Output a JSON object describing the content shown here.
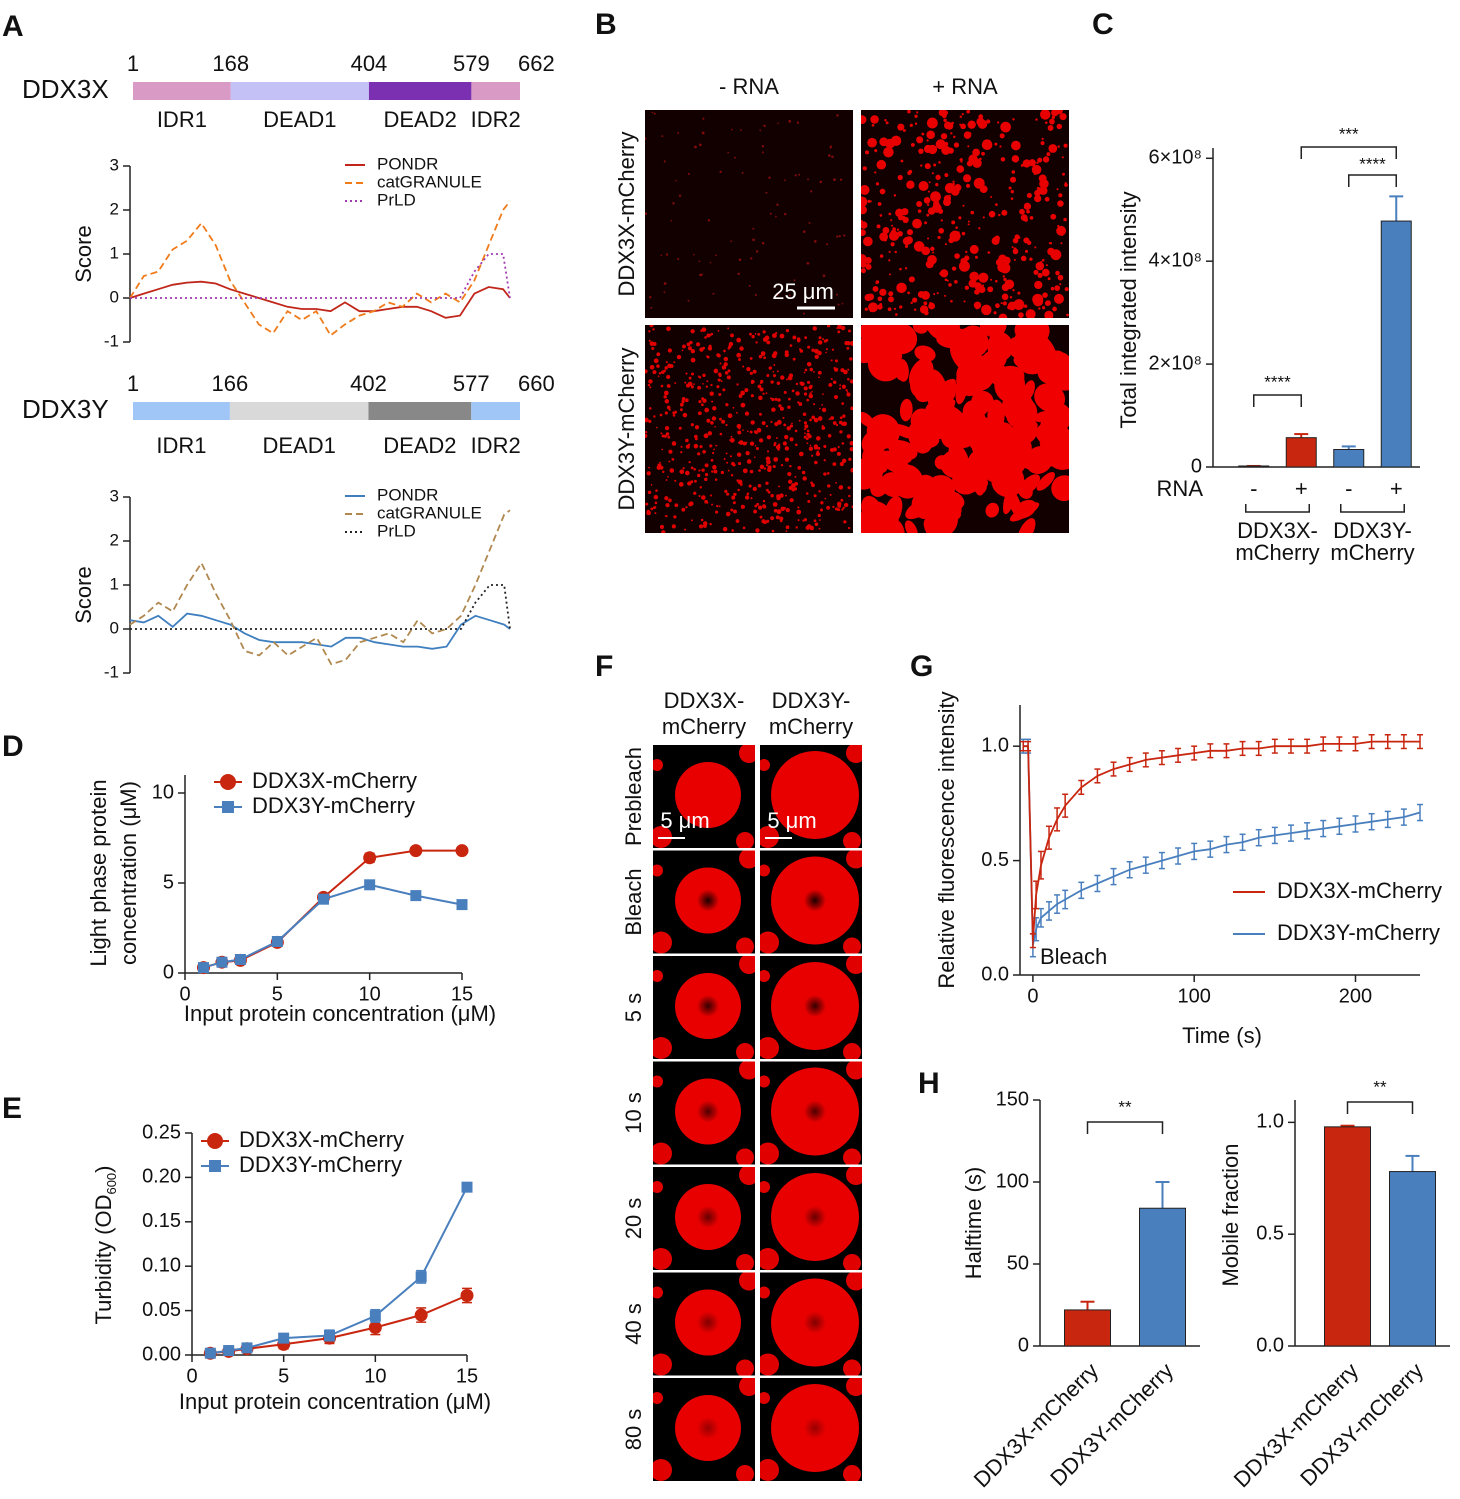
{
  "panel_labels": [
    "A",
    "B",
    "C",
    "D",
    "E",
    "F",
    "G",
    "H"
  ],
  "domain_maps": [
    {
      "name": "DDX3X",
      "positions": [
        1,
        168,
        404,
        579,
        662
      ],
      "domains": [
        "IDR1",
        "DEAD1",
        "DEAD2",
        "IDR2"
      ],
      "colors": [
        "#d99bc5",
        "#c3c1f6",
        "#7a30b0",
        "#d99bc5"
      ]
    },
    {
      "name": "DDX3Y",
      "positions": [
        1,
        166,
        402,
        577,
        660
      ],
      "domains": [
        "IDR1",
        "DEAD1",
        "DEAD2",
        "IDR2"
      ],
      "colors": [
        "#9fc6f6",
        "#d9d9d9",
        "#888888",
        "#9fc6f6"
      ]
    }
  ],
  "micrographs_b": {
    "columns": [
      "- RNA",
      "+ RNA"
    ],
    "rows": [
      "DDX3X-mCherry",
      "DDX3Y-mCherry"
    ],
    "scale_bar": "25 μm"
  },
  "micrographs_f": {
    "columns": [
      [
        "DDX3X-",
        "mCherry"
      ],
      [
        "DDX3Y-",
        "mCherry"
      ]
    ],
    "rows": [
      "Prebleach",
      "Bleach",
      "5 s",
      "10 s",
      "20 s",
      "40 s",
      "80 s"
    ],
    "scale_bar": "5 μm"
  },
  "chart_data": [
    {
      "type": "line",
      "ylabel": "Score",
      "xlim": [
        1,
        662
      ],
      "ylim": [
        -1,
        3
      ],
      "yticks": [
        -1,
        0,
        1,
        2,
        3
      ],
      "x": [
        1,
        25,
        50,
        75,
        100,
        125,
        150,
        175,
        200,
        225,
        250,
        275,
        300,
        325,
        350,
        375,
        400,
        425,
        450,
        475,
        500,
        525,
        550,
        575,
        600,
        625,
        650,
        662
      ],
      "series": [
        {
          "name": "PONDR",
          "color": "#c0261a",
          "dash": "solid",
          "values": [
            0,
            0.1,
            0.2,
            0.3,
            0.35,
            0.37,
            0.33,
            0.2,
            0.1,
            0.0,
            -0.1,
            -0.2,
            -0.25,
            -0.25,
            -0.3,
            -0.1,
            -0.3,
            -0.3,
            -0.25,
            -0.2,
            -0.2,
            -0.3,
            -0.45,
            -0.4,
            0.1,
            0.25,
            0.2,
            0
          ]
        },
        {
          "name": "catGRANULE",
          "color": "#f07b1a",
          "dash": "dashed",
          "values": [
            0,
            0.5,
            0.6,
            1.1,
            1.3,
            1.7,
            1.2,
            0.4,
            -0.1,
            -0.6,
            -0.8,
            -0.3,
            -0.5,
            -0.3,
            -0.85,
            -0.6,
            -0.4,
            -0.3,
            -0.1,
            -0.2,
            0.1,
            -0.1,
            0.1,
            -0.1,
            0.4,
            1.2,
            2.0,
            2.2
          ]
        },
        {
          "name": "PrLD",
          "color": "#a03ab0",
          "dash": "dotted",
          "values": [
            0,
            0,
            0,
            0,
            0,
            0,
            0,
            0,
            0,
            0,
            0,
            0,
            0,
            0,
            0,
            0,
            0,
            0,
            0,
            0,
            0,
            0,
            0,
            0,
            0.6,
            1.0,
            1.0,
            0
          ]
        }
      ]
    },
    {
      "type": "line",
      "ylabel": "Score",
      "xlim": [
        1,
        660
      ],
      "ylim": [
        -1,
        3
      ],
      "yticks": [
        -1,
        0,
        1,
        2,
        3
      ],
      "x": [
        1,
        25,
        50,
        75,
        100,
        125,
        150,
        175,
        200,
        225,
        250,
        275,
        300,
        325,
        350,
        375,
        400,
        425,
        450,
        475,
        500,
        525,
        550,
        575,
        600,
        625,
        650,
        660
      ],
      "series": [
        {
          "name": "PONDR",
          "color": "#3f7fbf",
          "dash": "solid",
          "values": [
            0.2,
            0.15,
            0.3,
            0.05,
            0.35,
            0.3,
            0.2,
            0.1,
            -0.1,
            -0.25,
            -0.3,
            -0.3,
            -0.3,
            -0.35,
            -0.4,
            -0.2,
            -0.2,
            -0.3,
            -0.35,
            -0.4,
            -0.4,
            -0.45,
            -0.4,
            0.1,
            0.3,
            0.2,
            0.1,
            0
          ]
        },
        {
          "name": "catGRANULE",
          "color": "#b08850",
          "dash": "dashed",
          "values": [
            0.1,
            0.3,
            0.6,
            0.4,
            1.0,
            1.5,
            0.8,
            0.2,
            -0.5,
            -0.6,
            -0.3,
            -0.6,
            -0.4,
            -0.2,
            -0.8,
            -0.7,
            -0.3,
            -0.2,
            -0.1,
            -0.3,
            0.2,
            -0.1,
            0.0,
            0.3,
            1.0,
            1.8,
            2.6,
            2.7
          ]
        },
        {
          "name": "PrLD",
          "color": "#222222",
          "dash": "dotted",
          "values": [
            0,
            0,
            0,
            0,
            0,
            0,
            0,
            0,
            0,
            0,
            0,
            0,
            0,
            0,
            0,
            0,
            0,
            0,
            0,
            0,
            0,
            0,
            0,
            0,
            0.6,
            1.0,
            1.0,
            0
          ]
        }
      ]
    },
    {
      "type": "bar",
      "ylabel": "Total integrated intensity",
      "ylim": [
        0,
        620000000
      ],
      "yticks": [
        0,
        {
          "value": 200000000,
          "label": "2×10⁸"
        },
        {
          "value": 400000000,
          "label": "4×10⁸"
        },
        {
          "value": 600000000,
          "label": "6×10⁸"
        }
      ],
      "row_label": "RNA",
      "categories": [
        "-",
        "+",
        "-",
        "+"
      ],
      "groups": [
        [
          "DDX3X-",
          "mCherry"
        ],
        [
          "DDX3Y-",
          "mCherry"
        ]
      ],
      "values": [
        2000000,
        57000000,
        34000000,
        478000000
      ],
      "errors": [
        0,
        7000000,
        6000000,
        48000000
      ],
      "colors": [
        "#c8260f",
        "#c8260f",
        "#4a7fbe",
        "#4a7fbe"
      ],
      "significance": [
        {
          "label": "****",
          "between": [
            0,
            1
          ]
        },
        {
          "label": "****",
          "between": [
            2,
            3
          ]
        },
        {
          "label": "***",
          "between": [
            1,
            3
          ]
        }
      ]
    },
    {
      "type": "line",
      "xlabel": "Input protein concentration (μM)",
      "ylabel": [
        "Light phase protein",
        "concentration (μM)"
      ],
      "xlim": [
        0,
        15
      ],
      "xticks": [
        0,
        5,
        10,
        15
      ],
      "ylim": [
        0,
        11
      ],
      "yticks": [
        0,
        5,
        10
      ],
      "x": [
        1,
        2,
        3,
        5,
        7.5,
        10,
        12.5,
        15
      ],
      "series": [
        {
          "name": "DDX3X-mCherry",
          "color": "#c8260f",
          "marker": "circle",
          "values": [
            0.3,
            0.6,
            0.7,
            1.7,
            4.2,
            6.4,
            6.8,
            6.8
          ],
          "errors": [
            0.15,
            0.1,
            0.1,
            0.1,
            0.1,
            0.25,
            0.1,
            0.1
          ]
        },
        {
          "name": "DDX3Y-mCherry",
          "color": "#4a7fbe",
          "marker": "square",
          "values": [
            0.3,
            0.6,
            0.75,
            1.75,
            4.1,
            4.9,
            4.3,
            3.8
          ],
          "errors": [
            0.1,
            0.1,
            0.1,
            0.1,
            0.1,
            0.1,
            0.1,
            0.1
          ]
        }
      ]
    },
    {
      "type": "line",
      "xlabel": "Input protein concentration (μM)",
      "ylabel": [
        "Turbidity (OD",
        "600",
        ")"
      ],
      "xlim": [
        0,
        15
      ],
      "xticks": [
        0,
        5,
        10,
        15
      ],
      "ylim": [
        0,
        0.25
      ],
      "yticks": [
        {
          "value": 0,
          "label": "0.00"
        },
        {
          "value": 0.05,
          "label": "0.05"
        },
        {
          "value": 0.1,
          "label": "0.10"
        },
        {
          "value": 0.15,
          "label": "0.15"
        },
        {
          "value": 0.2,
          "label": "0.20"
        },
        {
          "value": 0.25,
          "label": "0.25"
        }
      ],
      "x": [
        1,
        2,
        3,
        5,
        7.5,
        10,
        12.5,
        15
      ],
      "series": [
        {
          "name": "DDX3X-mCherry",
          "color": "#c8260f",
          "marker": "circle",
          "values": [
            0.002,
            0.004,
            0.007,
            0.012,
            0.019,
            0.031,
            0.045,
            0.067
          ],
          "errors": [
            0.003,
            0.003,
            0.003,
            0.005,
            0.006,
            0.008,
            0.008,
            0.008
          ]
        },
        {
          "name": "DDX3Y-mCherry",
          "color": "#4a7fbe",
          "marker": "square",
          "values": [
            0.002,
            0.005,
            0.008,
            0.019,
            0.022,
            0.044,
            0.088,
            0.189
          ],
          "errors": [
            0.002,
            0.003,
            0.003,
            0.004,
            0.006,
            0.007,
            0.007,
            0.005
          ]
        }
      ]
    },
    {
      "type": "line",
      "xlabel": "Time (s)",
      "ylabel": "Relative fluorescence intensity",
      "annotation": "Bleach",
      "xlim": [
        -8,
        240
      ],
      "xticks": [
        0,
        100,
        200
      ],
      "ylim": [
        0,
        1.18
      ],
      "yticks": [
        {
          "value": 0,
          "label": "0.0"
        },
        {
          "value": 0.5,
          "label": "0.5"
        },
        {
          "value": 1,
          "label": "1.0"
        }
      ],
      "x": [
        -6,
        -3,
        0,
        2,
        5,
        10,
        15,
        20,
        30,
        40,
        50,
        60,
        70,
        80,
        90,
        100,
        110,
        120,
        130,
        140,
        150,
        160,
        170,
        180,
        190,
        200,
        210,
        220,
        230,
        240
      ],
      "series": [
        {
          "name": "DDX3Y-mCherry",
          "color": "#4a7fbe",
          "values": [
            1.0,
            1.0,
            0.13,
            0.2,
            0.25,
            0.28,
            0.31,
            0.33,
            0.37,
            0.4,
            0.43,
            0.46,
            0.48,
            0.5,
            0.52,
            0.54,
            0.55,
            0.57,
            0.58,
            0.6,
            0.61,
            0.62,
            0.63,
            0.64,
            0.65,
            0.66,
            0.67,
            0.68,
            0.69,
            0.71
          ],
          "errors": [
            0.03,
            0.03,
            0.05,
            0.05,
            0.04,
            0.04,
            0.04,
            0.04,
            0.035,
            0.035,
            0.035,
            0.035,
            0.035,
            0.035,
            0.035,
            0.035,
            0.035,
            0.035,
            0.035,
            0.035,
            0.035,
            0.035,
            0.035,
            0.035,
            0.035,
            0.035,
            0.035,
            0.035,
            0.035,
            0.035
          ]
        },
        {
          "name": "DDX3X-mCherry",
          "color": "#c8260f",
          "values": [
            1.0,
            1.0,
            0.15,
            0.35,
            0.48,
            0.6,
            0.68,
            0.74,
            0.82,
            0.87,
            0.9,
            0.92,
            0.94,
            0.95,
            0.96,
            0.97,
            0.98,
            0.98,
            0.99,
            0.99,
            1.0,
            1.0,
            1.0,
            1.01,
            1.01,
            1.01,
            1.02,
            1.02,
            1.02,
            1.02
          ],
          "errors": [
            0.02,
            0.02,
            0.03,
            0.06,
            0.06,
            0.05,
            0.05,
            0.05,
            0.03,
            0.03,
            0.03,
            0.03,
            0.03,
            0.03,
            0.03,
            0.03,
            0.03,
            0.03,
            0.03,
            0.03,
            0.03,
            0.03,
            0.03,
            0.03,
            0.03,
            0.03,
            0.03,
            0.03,
            0.03,
            0.03
          ]
        }
      ]
    },
    {
      "type": "bar",
      "ylabel": "Halftime (s)",
      "ylim": [
        0,
        150
      ],
      "yticks": [
        0,
        50,
        100,
        150
      ],
      "categories": [
        "DDX3X-mCherry",
        "DDX3Y-mCherry"
      ],
      "values": [
        22,
        84
      ],
      "errors": [
        5,
        16
      ],
      "colors": [
        "#c8260f",
        "#4a7fbe"
      ],
      "significance": [
        {
          "label": "**",
          "between": [
            0,
            1
          ]
        }
      ]
    },
    {
      "type": "bar",
      "ylabel": "Mobile fraction",
      "ylim": [
        0,
        1.1
      ],
      "yticks": [
        {
          "value": 0,
          "label": "0.0"
        },
        {
          "value": 0.5,
          "label": "0.5"
        },
        {
          "value": 1,
          "label": "1.0"
        }
      ],
      "categories": [
        "DDX3X-mCherry",
        "DDX3Y-mCherry"
      ],
      "values": [
        0.98,
        0.78
      ],
      "errors": [
        0.005,
        0.07
      ],
      "colors": [
        "#c8260f",
        "#4a7fbe"
      ],
      "significance": [
        {
          "label": "**",
          "between": [
            0,
            1
          ]
        }
      ]
    }
  ]
}
